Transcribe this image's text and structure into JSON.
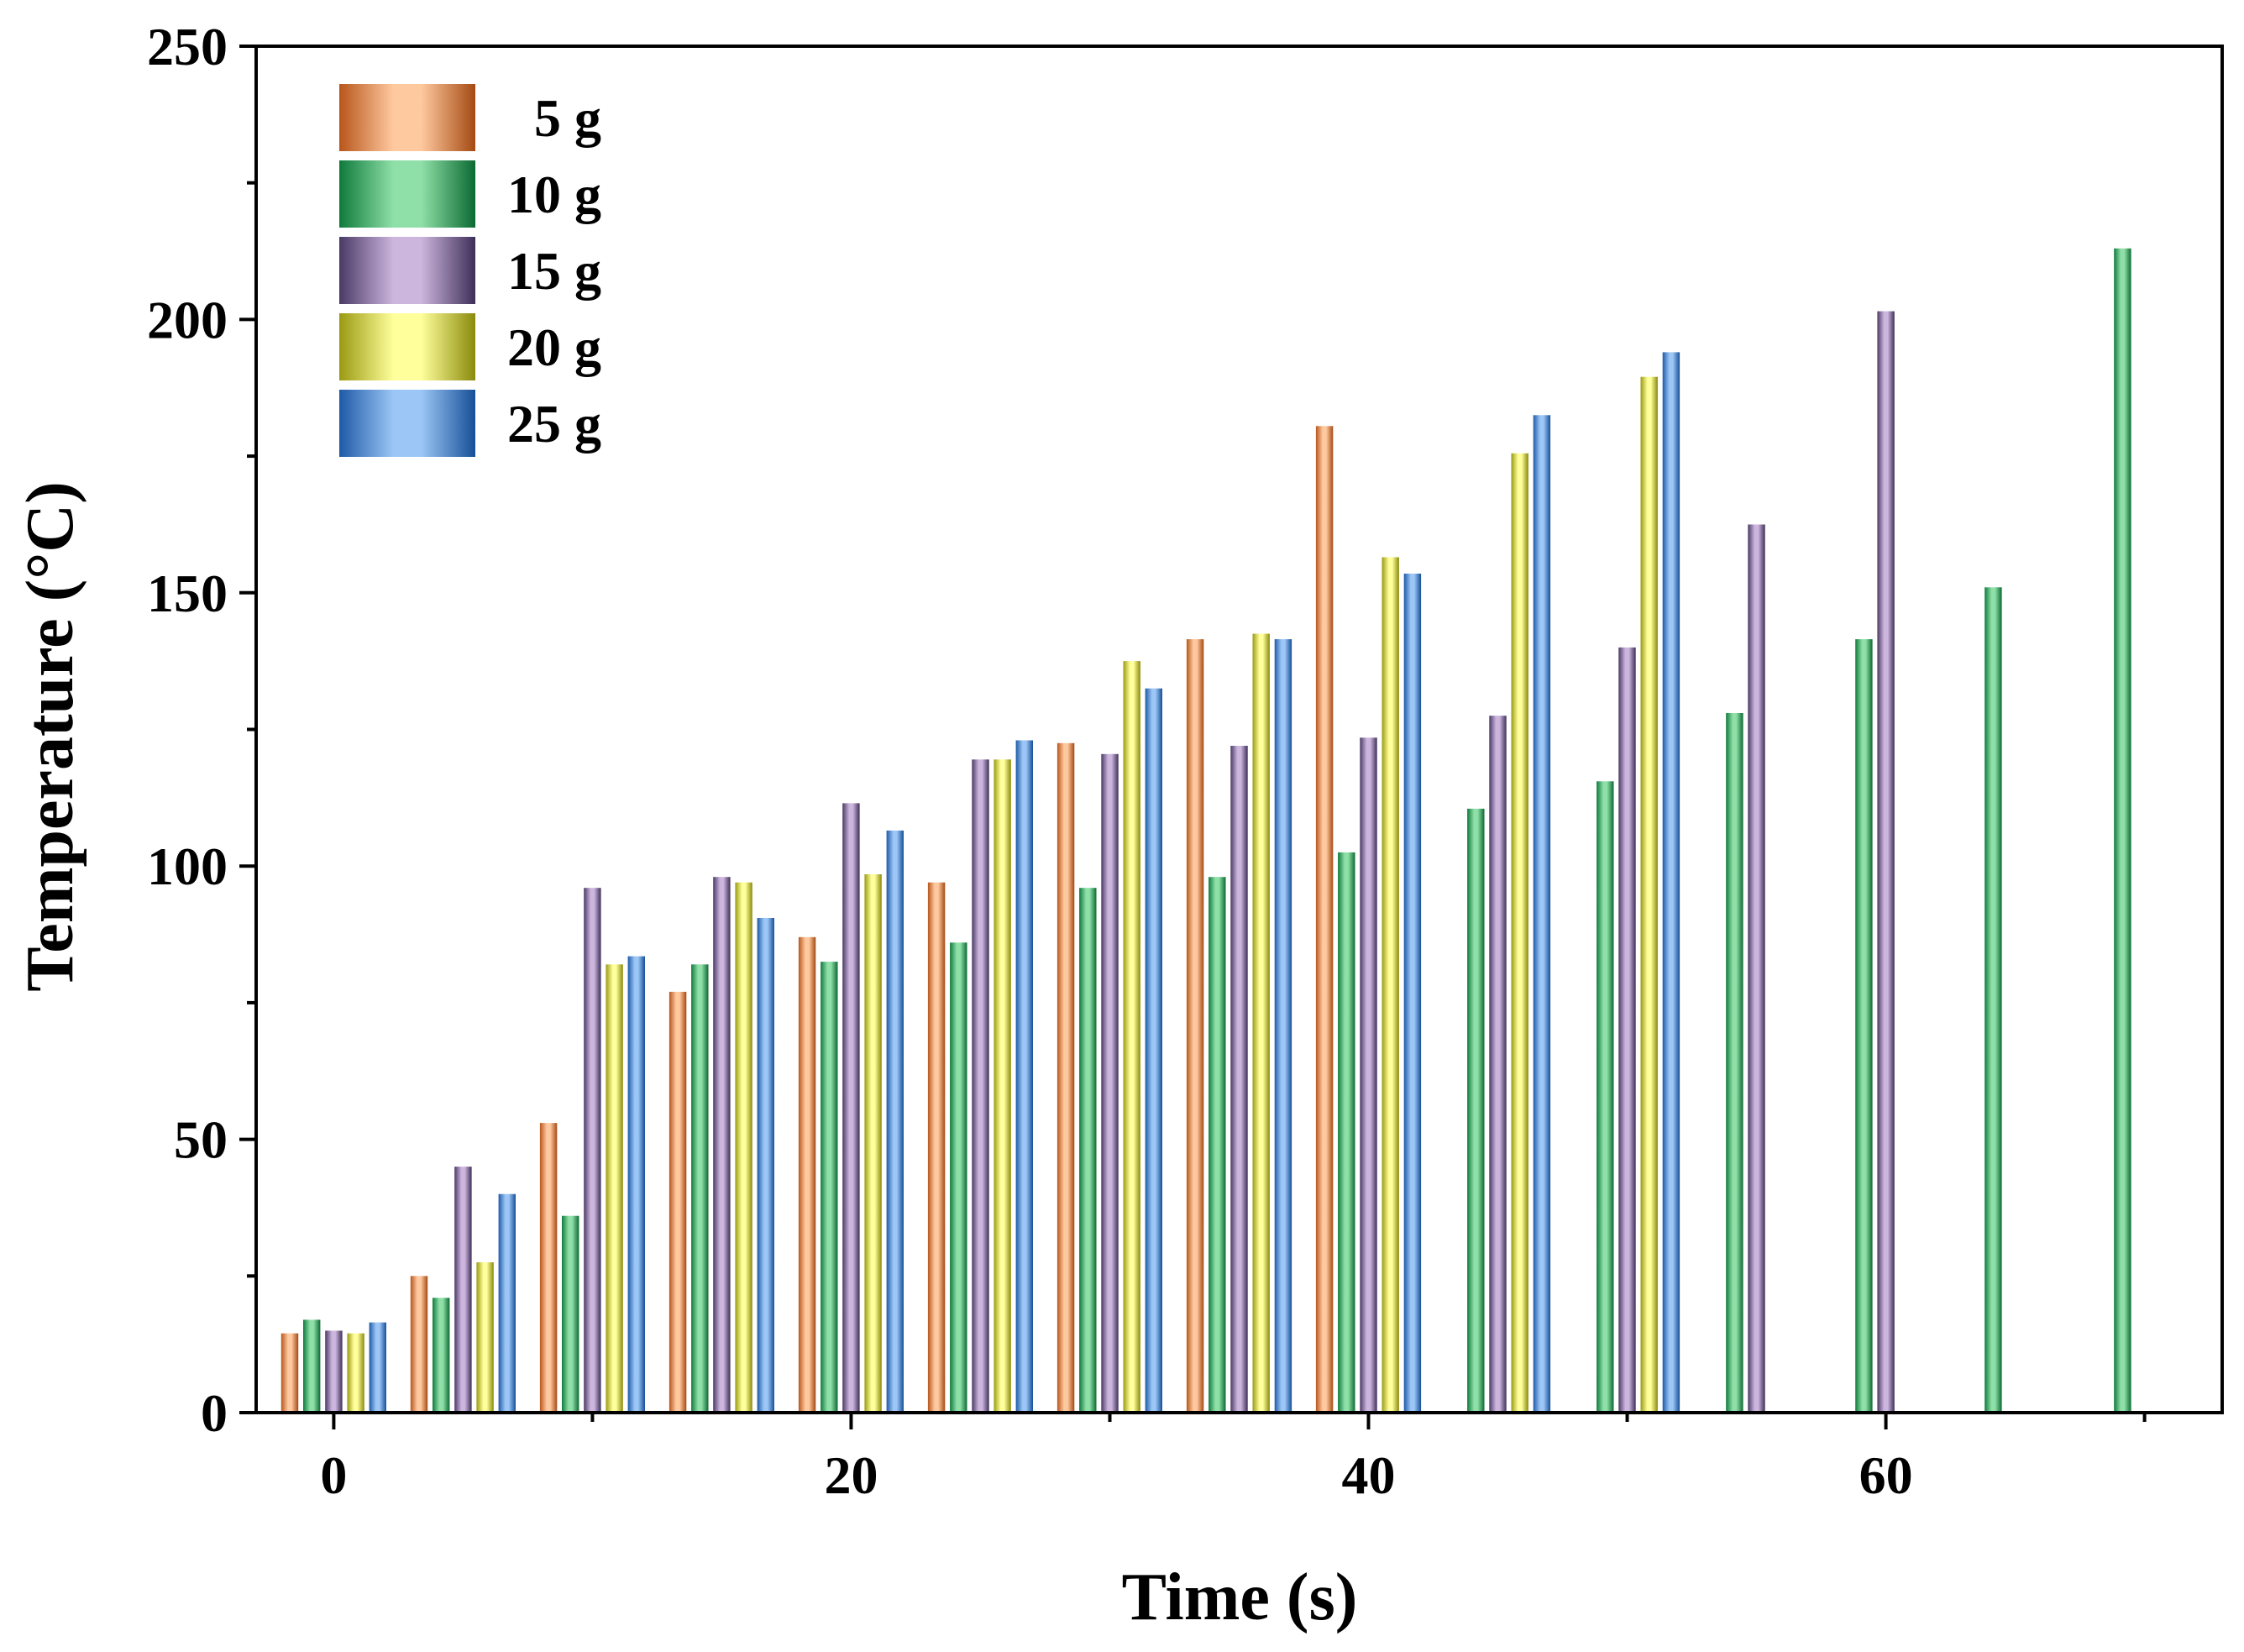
{
  "chart_data": {
    "type": "bar",
    "title": "",
    "xlabel": "Time (s)",
    "ylabel": "Temperature (°C)",
    "xlim": [
      -3,
      73
    ],
    "ylim": [
      0,
      250
    ],
    "x": [
      0,
      5,
      10,
      15,
      20,
      25,
      30,
      35,
      40,
      45,
      50,
      55,
      60,
      65,
      70
    ],
    "x_ticks": [
      0,
      20,
      40,
      60
    ],
    "x_minor_ticks": [
      10,
      30,
      50,
      70
    ],
    "y_ticks": [
      0,
      50,
      100,
      150,
      200,
      250
    ],
    "y_minor_ticks": [
      25,
      75,
      125,
      175,
      225
    ],
    "legend_position": "top-left",
    "grid": false,
    "series": [
      {
        "name": "5 g",
        "colors": [
          "#b8561b",
          "#ffc9a0",
          "#a54a12"
        ],
        "values": [
          14.5,
          25,
          53,
          77,
          87,
          97,
          122.5,
          141.5,
          180.5,
          null,
          null,
          null,
          null,
          null,
          null
        ]
      },
      {
        "name": "10 g",
        "colors": [
          "#0f7a3c",
          "#8fe0a8",
          "#0b6a32"
        ],
        "values": [
          17,
          21,
          36,
          82,
          82.5,
          86,
          96,
          98,
          102.5,
          110.5,
          115.5,
          128,
          141.5,
          151,
          213
        ]
      },
      {
        "name": "15 g",
        "colors": [
          "#4a3a66",
          "#cdb6de",
          "#3e2f58"
        ],
        "values": [
          15,
          45,
          96,
          98,
          111.5,
          119.5,
          120.5,
          122,
          123.5,
          127.5,
          140,
          162.5,
          201.5,
          null,
          null
        ]
      },
      {
        "name": "20 g",
        "colors": [
          "#9a9a12",
          "#ffff9c",
          "#8a8a0c"
        ],
        "values": [
          14.5,
          27.5,
          82,
          97,
          98.5,
          119.5,
          137.5,
          142.5,
          156.5,
          175.5,
          189.5,
          null,
          null,
          null,
          null
        ]
      },
      {
        "name": "25 g",
        "colors": [
          "#1e5aa8",
          "#9cc6f5",
          "#164f98"
        ],
        "values": [
          16.5,
          40,
          83.5,
          90.5,
          106.5,
          123,
          132.5,
          141.5,
          153.5,
          182.5,
          194,
          null,
          null,
          null,
          null
        ]
      }
    ]
  }
}
